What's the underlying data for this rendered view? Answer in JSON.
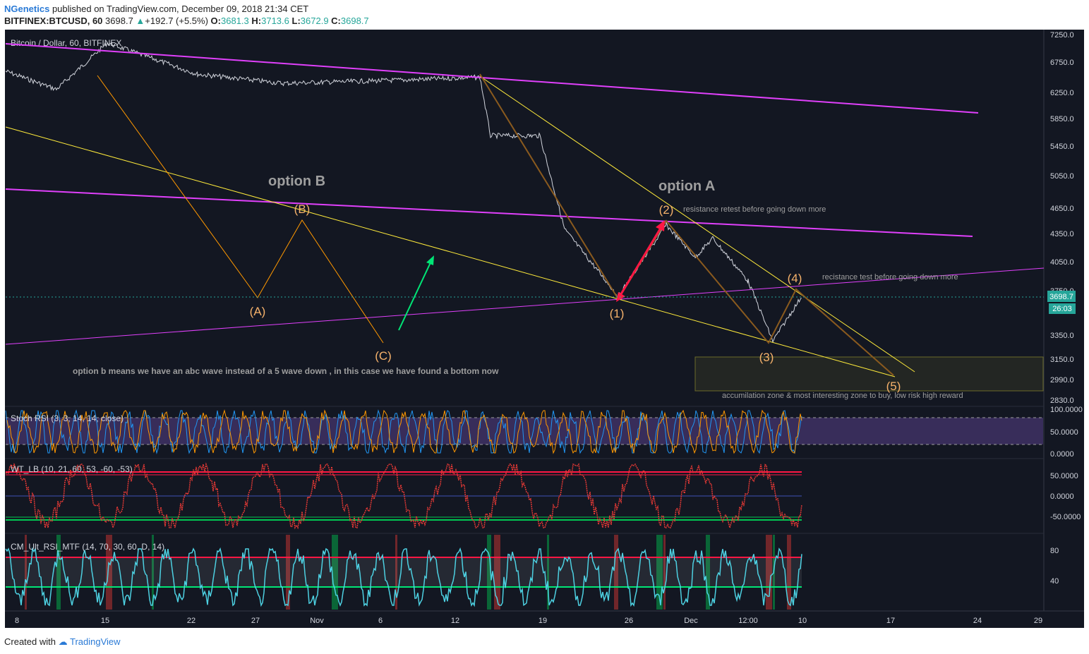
{
  "header": {
    "author": "NGenetics",
    "published": "published on TradingView.com, December 09, 2018 21:34 CET",
    "symbol": "BITFINEX:BTCUSD, 60",
    "last": "3698.7",
    "change": "+192.7 (+5.5%)",
    "change_arrow": "▲",
    "o_label": "O:",
    "o": "3681.3",
    "h_label": "H:",
    "h": "3713.6",
    "l_label": "L:",
    "l": "3672.9",
    "c_label": "C:",
    "c": "3698.7"
  },
  "chart_data": {
    "type": "line",
    "title": "Bitcoin / Dollar, 60, BITFINEX",
    "ylim": [
      2800,
      7350
    ],
    "price_ticks": [
      "7250.0",
      "6750.0",
      "6250.0",
      "5850.0",
      "5450.0",
      "5050.0",
      "4650.0",
      "4350.0",
      "4050.0",
      "3750.0",
      "3350.0",
      "3150.0",
      "2990.0",
      "2830.0"
    ],
    "x_ticks": [
      "8",
      "15",
      "22",
      "27",
      "Nov",
      "6",
      "12",
      "19",
      "26",
      "Dec",
      "12:00",
      "10",
      "17",
      "24",
      "29"
    ],
    "current_price": "3698.7",
    "countdown": "26:03",
    "series": [
      {
        "x": [
          "Oct 8",
          "Oct 12",
          "Oct 15",
          "Oct 22",
          "Oct 29",
          "Nov 6",
          "Nov 14",
          "Nov 15",
          "Nov 19",
          "Nov 21",
          "Nov 25",
          "Nov 29",
          "Dec 1",
          "Dec 3",
          "Dec 5",
          "Dec 7",
          "Dec 9"
        ],
        "values": [
          6600,
          6300,
          7100,
          6550,
          6400,
          6450,
          6500,
          5600,
          5600,
          4400,
          3700,
          4450,
          4100,
          4300,
          3850,
          3300,
          3700
        ]
      }
    ],
    "annotations": {
      "option_b": "option B",
      "option_a": "option A",
      "wave_a": "(A)",
      "wave_b": "(B)",
      "wave_c": "(C)",
      "wave_1": "(1)",
      "wave_2": "(2)",
      "wave_3": "(3)",
      "wave_4": "(4)",
      "wave_5": "(5)",
      "resistance_retest": "resistance retest before going down more",
      "resistance_test": "recistance test before going down more",
      "option_b_note": "option b means we have an abc wave instead of a 5 wave down , in this case we have found a bottom now",
      "accumulation": "accumilation zone & most interesting zone to buy, low risk high reward"
    },
    "indicators": [
      {
        "name": "Stoch RSI (3, 3, 14, 14, close)",
        "ticks": [
          "100.0000",
          "50.0000",
          "0.0000"
        ],
        "band": [
          20,
          80
        ]
      },
      {
        "name": "WT_LB (10, 21, 60, 53, -60, -53)",
        "ticks": [
          "50.0000",
          "0.0000",
          "-50.0000"
        ],
        "levels": [
          53,
          60,
          -53,
          -60
        ]
      },
      {
        "name": "CM_Ult_RSI_MTF (14, 70, 30, 60, D, 14)",
        "ticks": [
          "80",
          "40"
        ],
        "levels": [
          70,
          30
        ]
      }
    ]
  },
  "footer": {
    "created": "Created with",
    "brand": "TradingView"
  },
  "colors": {
    "background": "#131722",
    "magenta": "#e040fb",
    "yellow": "#ffeb3b",
    "orange": "#ff9800",
    "wave_label": "#f6b26b",
    "option_text": "#9e9e9e",
    "green_arrow": "#00e676",
    "red_arrow": "#ff1744",
    "price_tag": "#26a69a"
  }
}
